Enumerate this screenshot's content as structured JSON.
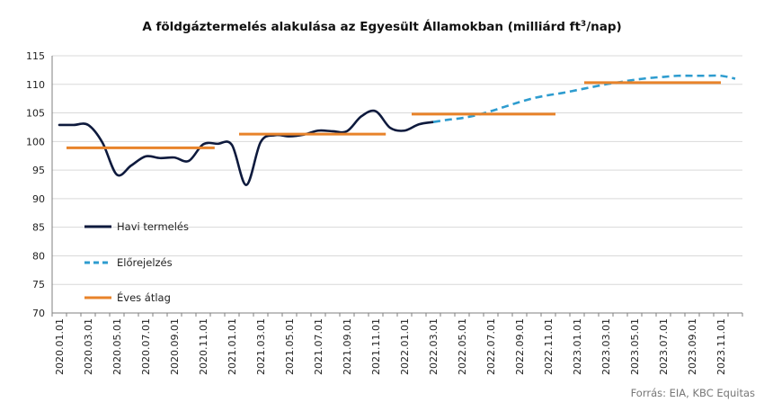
{
  "chart_data": {
    "type": "line",
    "title": "A földgáztermelés alakulása az Egyesült Államokban (milliárd ft",
    "title_sup": "3",
    "title_end": "/nap)",
    "source": "Forrás: EIA, KBC Equitas",
    "ylim": [
      70,
      115
    ],
    "yticks": [
      "70",
      "75",
      "80",
      "85",
      "90",
      "95",
      "100",
      "105",
      "110",
      "115"
    ],
    "x_tick_labels": [
      "2020.01.01",
      "2020.03.01",
      "2020.05.01",
      "2020.07.01",
      "2020.09.01",
      "2020.11.01",
      "2021.01.01",
      "2021.03.01",
      "2021.05.01",
      "2021.07.01",
      "2021.09.01",
      "2021.11.01",
      "2022.01.01",
      "2022.03.01",
      "2022.05.01",
      "2022.07.01",
      "2022.09.01",
      "2022.11.01",
      "2023.01.01",
      "2023.03.01",
      "2023.05.01",
      "2023.07.01",
      "2023.09.01",
      "2023.11.01"
    ],
    "x_months": [
      "2020.01",
      "2020.02",
      "2020.03",
      "2020.04",
      "2020.05",
      "2020.06",
      "2020.07",
      "2020.08",
      "2020.09",
      "2020.10",
      "2020.11",
      "2020.12",
      "2021.01",
      "2021.02",
      "2021.03",
      "2021.04",
      "2021.05",
      "2021.06",
      "2021.07",
      "2021.08",
      "2021.09",
      "2021.10",
      "2021.11",
      "2021.12",
      "2022.01",
      "2022.02",
      "2022.03",
      "2022.04",
      "2022.05",
      "2022.06",
      "2022.07",
      "2022.08",
      "2022.09",
      "2022.10",
      "2022.11",
      "2022.12",
      "2023.01",
      "2023.02",
      "2023.03",
      "2023.04",
      "2023.05",
      "2023.06",
      "2023.07",
      "2023.08",
      "2023.09",
      "2023.10",
      "2023.11",
      "2023.12"
    ],
    "grid": true,
    "legend_position": "left",
    "series": [
      {
        "name": "Havi termelés",
        "style": "solid",
        "color": "#0e1a3d",
        "start_index": 0,
        "values": [
          102.9,
          102.9,
          102.9,
          99.8,
          94.2,
          95.8,
          97.4,
          97.1,
          97.2,
          96.6,
          99.5,
          99.6,
          99.4,
          92.4,
          99.9,
          101.1,
          100.9,
          101.2,
          101.9,
          101.8,
          101.8,
          104.4,
          105.3,
          102.4,
          101.9,
          103.0,
          103.4
        ]
      },
      {
        "name": "Előrejelzés",
        "style": "dashed",
        "color": "#2e9ccf",
        "start_index": 26,
        "values": [
          103.4,
          103.8,
          104.1,
          104.6,
          105.3,
          106.1,
          106.9,
          107.6,
          108.1,
          108.5,
          109.0,
          109.5,
          110.0,
          110.4,
          110.8,
          111.1,
          111.3,
          111.5,
          111.5,
          111.5,
          111.5,
          111.0
        ]
      },
      {
        "name": "Éves átlag",
        "style": "segments",
        "color": "#e8832a",
        "segments": [
          {
            "from": 0.5,
            "to": 10.8,
            "value": 98.9
          },
          {
            "from": 12.5,
            "to": 22.7,
            "value": 101.3
          },
          {
            "from": 24.5,
            "to": 34.5,
            "value": 104.8
          },
          {
            "from": 36.5,
            "to": 46.0,
            "value": 110.3
          }
        ]
      }
    ]
  }
}
